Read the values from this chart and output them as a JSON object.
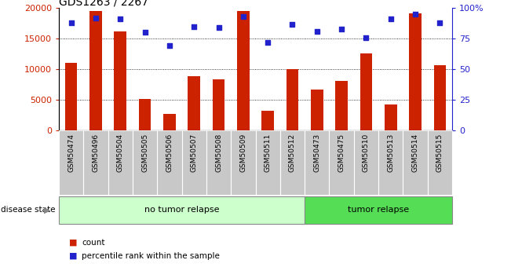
{
  "title": "GDS1263 / 2267",
  "samples": [
    "GSM50474",
    "GSM50496",
    "GSM50504",
    "GSM50505",
    "GSM50506",
    "GSM50507",
    "GSM50508",
    "GSM50509",
    "GSM50511",
    "GSM50512",
    "GSM50473",
    "GSM50475",
    "GSM50510",
    "GSM50513",
    "GSM50514",
    "GSM50515"
  ],
  "counts": [
    11000,
    19500,
    16200,
    5100,
    2600,
    8800,
    8300,
    19500,
    3200,
    10000,
    6700,
    8100,
    12600,
    4200,
    19200,
    10600
  ],
  "percentiles": [
    88,
    92,
    91,
    80,
    69,
    85,
    84,
    93,
    72,
    87,
    81,
    83,
    76,
    91,
    95,
    88
  ],
  "bar_color": "#cc2200",
  "dot_color": "#2222cc",
  "ylim_left": [
    0,
    20000
  ],
  "ylim_right": [
    0,
    100
  ],
  "yticks_left": [
    0,
    5000,
    10000,
    15000,
    20000
  ],
  "yticks_right": [
    0,
    25,
    50,
    75,
    100
  ],
  "yticklabels_right": [
    "0",
    "25",
    "50",
    "75",
    "100%"
  ],
  "no_tumor_count": 10,
  "tumor_count": 6,
  "group_label_no_tumor": "no tumor relapse",
  "group_label_tumor": "tumor relapse",
  "disease_state_label": "disease state",
  "legend_count_label": "count",
  "legend_percentile_label": "percentile rank within the sample",
  "bar_width": 0.5,
  "xtick_bg_color": "#c8c8c8",
  "no_tumor_color": "#ccffcc",
  "tumor_color": "#55dd55"
}
